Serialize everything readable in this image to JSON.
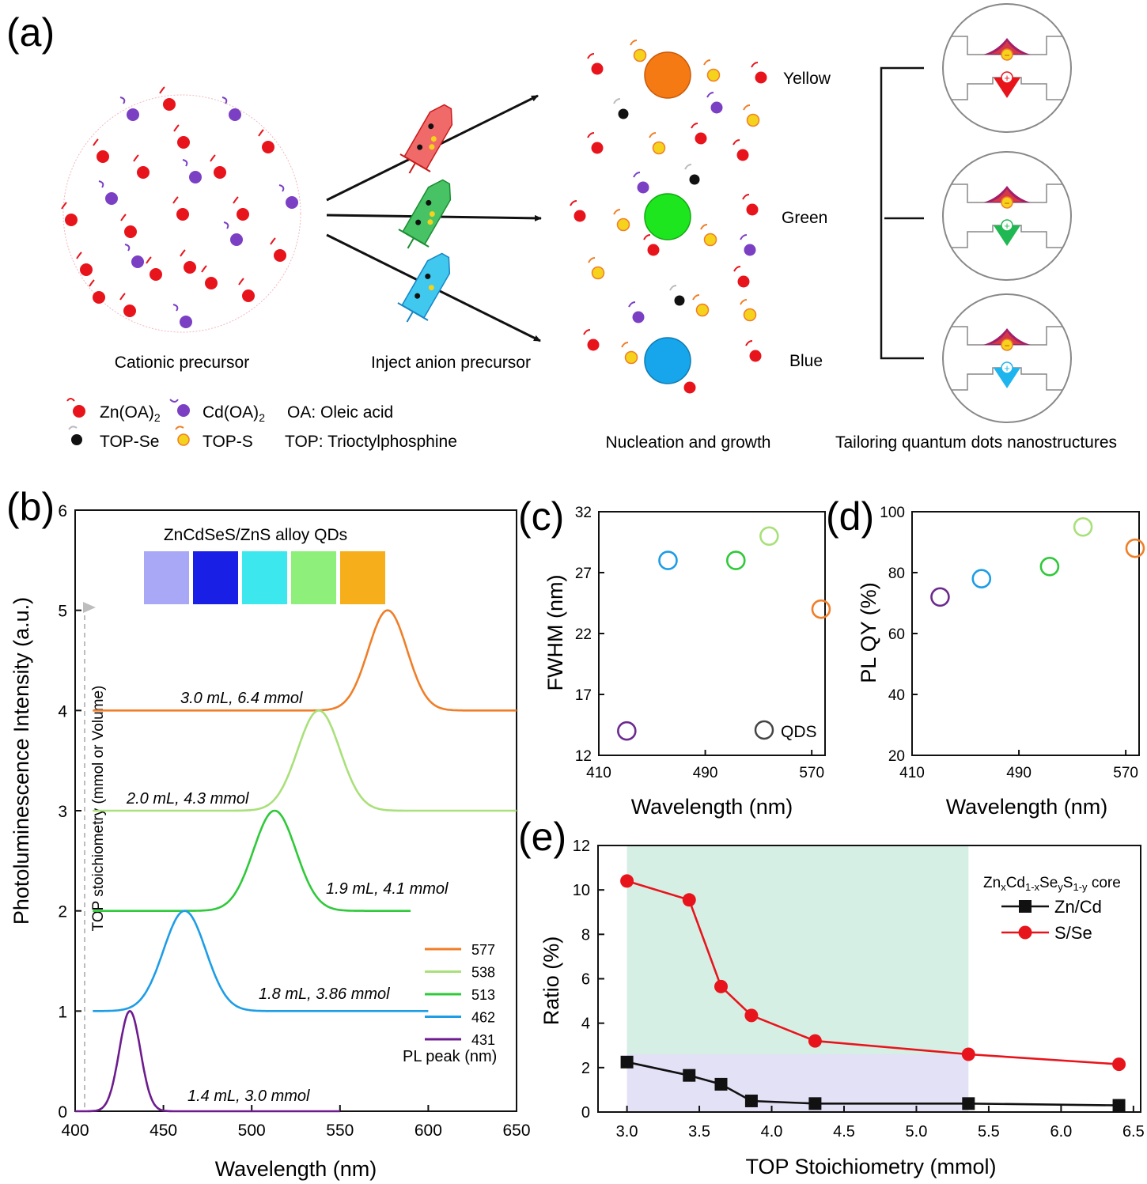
{
  "panel_a": {
    "label": "(a)",
    "cationic_caption": "Cationic precursor",
    "inject_caption": "Inject anion precursor",
    "nucleation_caption": "Nucleation and growth",
    "tailoring_caption": "Tailoring quantum dots nanostructures",
    "colors": {
      "yellow_label": "Yellow",
      "green_label": "Green",
      "blue_label": "Blue"
    },
    "legend": {
      "zn_main": "Zn(OA)",
      "zn_sub": "2",
      "cd_main": "Cd(OA)",
      "cd_sub": "2",
      "oa": "OA: Oleic acid",
      "top_se": "TOP-Se",
      "top_s": "TOP-S",
      "top": "TOP: Trioctylphosphine"
    },
    "symbols": {
      "minus": "−",
      "plus": "+"
    },
    "palette": {
      "zn": "#e8141c",
      "cd": "#7b3fc4",
      "se": "#111111",
      "s": "#f5d21b",
      "yellow_dot": "#f57a14",
      "green_dot": "#1ee61e",
      "blue_dot": "#17a6ec"
    }
  },
  "chart_data": [
    {
      "type": "line",
      "panel": "(b)",
      "title": "ZnCdSeS/ZnS alloy QDs",
      "xlabel": "Wavelength (nm)",
      "ylabel": "Photoluminescence Intensity (a.u.)",
      "arrow_label": "TOP stoichiometry (mmol or Volume)",
      "xlim": [
        400,
        650
      ],
      "ylim": [
        0,
        6
      ],
      "xticks": [
        "400",
        "450",
        "500",
        "550",
        "600",
        "650"
      ],
      "yticks": [
        "0",
        "1",
        "2",
        "3",
        "4",
        "5",
        "6"
      ],
      "legend_title": "PL peak (nm)",
      "swatch_colors": [
        "#a9a8f6",
        "#1a1fe6",
        "#3ce8ee",
        "#8ef07a",
        "#f6ae1a"
      ],
      "series": [
        {
          "name": "577",
          "color": "#f07e28",
          "peak": 577,
          "sigma": 11,
          "offset": 4,
          "x_start": 410,
          "x_end": 650,
          "annotation": "3.0 mL, 6.4 mmol"
        },
        {
          "name": "538",
          "color": "#a9e07a",
          "peak": 538,
          "sigma": 12,
          "offset": 3,
          "x_start": 410,
          "x_end": 650,
          "annotation": "2.0 mL, 4.3 mmol"
        },
        {
          "name": "513",
          "color": "#2fc93a",
          "peak": 513,
          "sigma": 12,
          "offset": 2,
          "x_start": 410,
          "x_end": 590,
          "annotation": "1.9 mL, 4.1 mmol"
        },
        {
          "name": "462",
          "color": "#1d9de6",
          "peak": 462,
          "sigma": 12,
          "offset": 1,
          "x_start": 410,
          "x_end": 600,
          "annotation": "1.8 mL, 3.86 mmol"
        },
        {
          "name": "431",
          "color": "#6d1b8e",
          "peak": 431,
          "sigma": 6,
          "offset": 0,
          "x_start": 400,
          "x_end": 550,
          "annotation": "1.4 mL, 3.0 mmol"
        }
      ]
    },
    {
      "type": "scatter",
      "panel": "(c)",
      "xlabel": "Wavelength (nm)",
      "ylabel": "FWHM (nm)",
      "xlim": [
        410,
        580
      ],
      "ylim": [
        12,
        32
      ],
      "xticks": [
        410,
        490,
        570
      ],
      "yticks": [
        12,
        17,
        22,
        27,
        32
      ],
      "legend": "QDS",
      "points": [
        {
          "x": 431,
          "y": 14,
          "color": "#6d2a8e"
        },
        {
          "x": 462,
          "y": 28,
          "color": "#1d9de6"
        },
        {
          "x": 513,
          "y": 28,
          "color": "#2fc93a"
        },
        {
          "x": 538,
          "y": 30,
          "color": "#a9e07a"
        },
        {
          "x": 577,
          "y": 24,
          "color": "#f07e28"
        }
      ]
    },
    {
      "type": "scatter",
      "panel": "(d)",
      "xlabel": "Wavelength (nm)",
      "ylabel": "PL QY (%)",
      "xlim": [
        410,
        580
      ],
      "ylim": [
        20,
        100
      ],
      "xticks": [
        410,
        490,
        570
      ],
      "yticks": [
        20,
        40,
        60,
        80,
        100
      ],
      "points": [
        {
          "x": 431,
          "y": 72,
          "color": "#6d2a8e"
        },
        {
          "x": 462,
          "y": 78,
          "color": "#1d9de6"
        },
        {
          "x": 513,
          "y": 82,
          "color": "#2fc93a"
        },
        {
          "x": 538,
          "y": 95,
          "color": "#a9e07a"
        },
        {
          "x": 577,
          "y": 88,
          "color": "#f07e28"
        }
      ]
    },
    {
      "type": "line",
      "panel": "(e)",
      "xlabel": "TOP Stoichiometry (mmol)",
      "ylabel": "Ratio (%)",
      "xlim": [
        2.8,
        6.55
      ],
      "ylim": [
        0,
        12
      ],
      "xticks": [
        "3.0",
        "3.5",
        "4.0",
        "4.5",
        "5.0",
        "5.5",
        "6.0",
        "6.5"
      ],
      "yticks": [
        "0",
        "2",
        "4",
        "6",
        "8",
        "10",
        "12"
      ],
      "legend_title": {
        "parts": [
          [
            "Zn",
            ""
          ],
          [
            "x",
            "sub"
          ],
          [
            "Cd",
            ""
          ],
          [
            "1-x",
            "sub"
          ],
          [
            "Se",
            ""
          ],
          [
            "y",
            "sub"
          ],
          [
            "S",
            ""
          ],
          [
            "1-y",
            "sub"
          ],
          [
            " core",
            ""
          ]
        ]
      },
      "shaded_regions": [
        {
          "x0": 3.0,
          "x1": 5.36,
          "y0": 2.6,
          "y1": 12,
          "color": "#d5efe4"
        },
        {
          "x0": 3.0,
          "x1": 5.36,
          "y0": 0,
          "y1": 2.6,
          "color": "#e3e1f6"
        }
      ],
      "series": [
        {
          "name": "Zn/Cd",
          "color": "#111111",
          "marker": "square",
          "x": [
            3.0,
            3.43,
            3.65,
            3.86,
            4.3,
            5.36,
            6.4
          ],
          "y": [
            2.25,
            1.65,
            1.25,
            0.5,
            0.38,
            0.38,
            0.3
          ]
        },
        {
          "name": "S/Se",
          "color": "#e8141c",
          "marker": "circle",
          "x": [
            3.0,
            3.43,
            3.65,
            3.86,
            4.3,
            5.36,
            6.4
          ],
          "y": [
            10.4,
            9.55,
            5.65,
            4.35,
            3.2,
            2.6,
            2.15
          ]
        }
      ]
    }
  ]
}
